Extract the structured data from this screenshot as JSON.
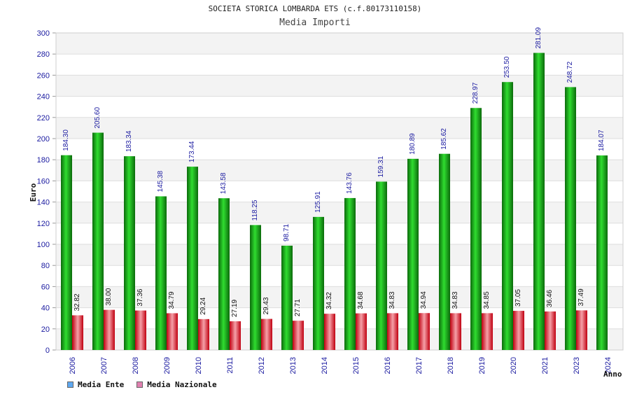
{
  "chart_data": {
    "type": "bar",
    "title": "SOCIETA STORICA LOMBARDA ETS (c.f.80173110158)",
    "subtitle": "Media Importi",
    "xlabel": "Anno",
    "ylabel": "Euro",
    "ylim": [
      0,
      300
    ],
    "yticks": [
      0,
      20,
      40,
      60,
      80,
      100,
      120,
      140,
      160,
      180,
      200,
      220,
      240,
      260,
      280,
      300
    ],
    "grid": true,
    "legend_position": "bottom-left",
    "categories": [
      "2006",
      "2007",
      "2008",
      "2009",
      "2010",
      "2011",
      "2012",
      "2013",
      "2014",
      "2015",
      "2016",
      "2017",
      "2018",
      "2019",
      "2020",
      "2021",
      "2023",
      "2024"
    ],
    "series": [
      {
        "name": "Media Ente",
        "color": "#1a9e1a",
        "legend_color": "#5ea8f0",
        "labels": [
          "184.30",
          "205.60",
          "183.34",
          "145.38",
          "173.44",
          "143.58",
          "118.25",
          "98.71",
          "125.91",
          "143.76",
          "159.31",
          "180.89",
          "185.62",
          "228.97",
          "253.50",
          "281.09",
          "248.72",
          "184.07"
        ],
        "values": [
          184.3,
          205.6,
          183.34,
          145.38,
          173.44,
          143.58,
          118.25,
          98.71,
          125.91,
          143.76,
          159.31,
          180.89,
          185.62,
          228.97,
          253.5,
          281.09,
          248.72,
          184.07
        ]
      },
      {
        "name": "Media Nazionale",
        "color": "#e0192a",
        "legend_color": "#e080b0",
        "labels": [
          "32.82",
          "38.00",
          "37.36",
          "34.79",
          "29.24",
          "27.19",
          "29.43",
          "27.71",
          "34.32",
          "34.68",
          "34.83",
          "34.94",
          "34.83",
          "34.85",
          "37.05",
          "36.46",
          "37.49",
          ""
        ],
        "values": [
          32.82,
          38.0,
          37.36,
          34.79,
          29.24,
          27.19,
          29.43,
          27.71,
          34.32,
          34.68,
          34.83,
          34.94,
          34.83,
          34.85,
          37.05,
          36.46,
          37.49,
          null
        ]
      }
    ]
  }
}
